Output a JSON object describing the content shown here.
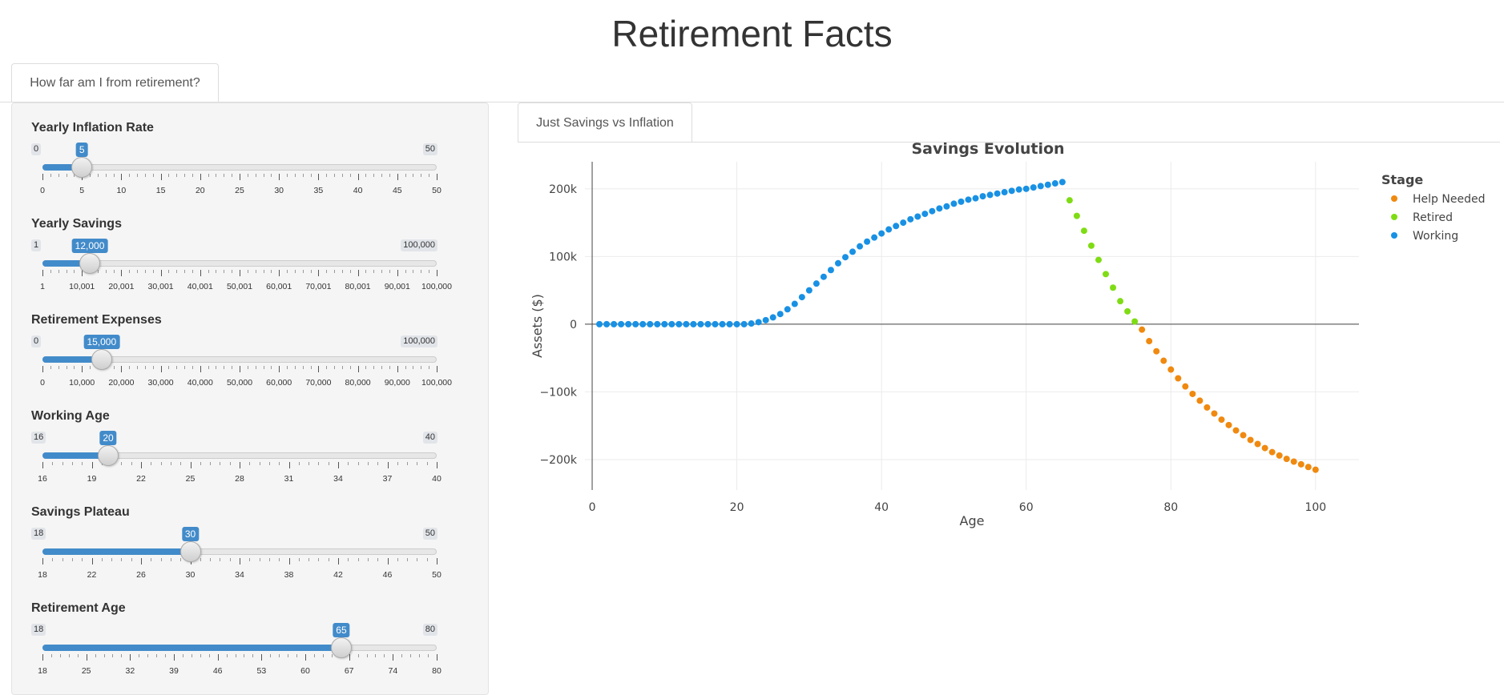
{
  "app": {
    "title": "Retirement Facts"
  },
  "tabs": {
    "main": "How far am I from retirement?",
    "inner": "Just Savings vs Inflation"
  },
  "sliders": [
    {
      "label": "Yearly Inflation Rate",
      "min": 0,
      "max": 50,
      "value": 5,
      "min_label": "0",
      "max_label": "50",
      "value_label": "5",
      "ticks": [
        "0",
        "5",
        "10",
        "15",
        "20",
        "25",
        "30",
        "35",
        "40",
        "45",
        "50"
      ]
    },
    {
      "label": "Yearly Savings",
      "min": 1,
      "max": 100000,
      "value": 12000,
      "min_label": "1",
      "max_label": "100,000",
      "value_label": "12,000",
      "ticks": [
        "1",
        "10,001",
        "20,001",
        "30,001",
        "40,001",
        "50,001",
        "60,001",
        "70,001",
        "80,001",
        "90,001",
        "100,000"
      ]
    },
    {
      "label": "Retirement Expenses",
      "min": 0,
      "max": 100000,
      "value": 15000,
      "min_label": "0",
      "max_label": "100,000",
      "value_label": "15,000",
      "ticks": [
        "0",
        "10,000",
        "20,000",
        "30,000",
        "40,000",
        "50,000",
        "60,000",
        "70,000",
        "80,000",
        "90,000",
        "100,000"
      ]
    },
    {
      "label": "Working Age",
      "min": 16,
      "max": 40,
      "value": 20,
      "min_label": "16",
      "max_label": "40",
      "value_label": "20",
      "ticks": [
        "16",
        "19",
        "22",
        "25",
        "28",
        "31",
        "34",
        "37",
        "40"
      ]
    },
    {
      "label": "Savings Plateau",
      "min": 18,
      "max": 50,
      "value": 30,
      "min_label": "18",
      "max_label": "50",
      "value_label": "30",
      "ticks": [
        "18",
        "22",
        "26",
        "30",
        "34",
        "38",
        "42",
        "46",
        "50"
      ]
    },
    {
      "label": "Retirement Age",
      "min": 18,
      "max": 80,
      "value": 65,
      "min_label": "18",
      "max_label": "80",
      "value_label": "65",
      "ticks": [
        "18",
        "25",
        "32",
        "39",
        "46",
        "53",
        "60",
        "67",
        "74",
        "80"
      ]
    }
  ],
  "chart_data": {
    "type": "scatter",
    "title": "Savings Evolution",
    "xlabel": "Age",
    "ylabel": "Assets ($)",
    "xlim": [
      -1,
      106
    ],
    "ylim": [
      -245000,
      240000
    ],
    "xticks": [
      0,
      20,
      40,
      60,
      80,
      100
    ],
    "yticks": [
      {
        "value": 200000,
        "label": "200k"
      },
      {
        "value": 100000,
        "label": "100k"
      },
      {
        "value": 0,
        "label": "0"
      },
      {
        "value": -100000,
        "label": "−100k"
      },
      {
        "value": -200000,
        "label": "−200k"
      }
    ],
    "legend": {
      "title": "Stage",
      "position": "right"
    },
    "series": [
      {
        "name": "Help Needed",
        "color": "#f0890f",
        "x": [
          76,
          77,
          78,
          79,
          80,
          81,
          82,
          83,
          84,
          85,
          86,
          87,
          88,
          89,
          90,
          91,
          92,
          93,
          94,
          95,
          96,
          97,
          98,
          99,
          100
        ],
        "y": [
          -8000,
          -25000,
          -40000,
          -54000,
          -67000,
          -80000,
          -92000,
          -103000,
          -113000,
          -123000,
          -132000,
          -141000,
          -149000,
          -157000,
          -164000,
          -171000,
          -177000,
          -183000,
          -189000,
          -194000,
          -199000,
          -203000,
          -207000,
          -211000,
          -215000
        ]
      },
      {
        "name": "Retired",
        "color": "#7fdc14",
        "x": [
          66,
          67,
          68,
          69,
          70,
          71,
          72,
          73,
          74,
          75
        ],
        "y": [
          183000,
          160000,
          138000,
          116000,
          95000,
          74000,
          54000,
          34000,
          19000,
          4000
        ]
      },
      {
        "name": "Working",
        "color": "#1891e4",
        "x": [
          1,
          2,
          3,
          4,
          5,
          6,
          7,
          8,
          9,
          10,
          11,
          12,
          13,
          14,
          15,
          16,
          17,
          18,
          19,
          20,
          21,
          22,
          23,
          24,
          25,
          26,
          27,
          28,
          29,
          30,
          31,
          32,
          33,
          34,
          35,
          36,
          37,
          38,
          39,
          40,
          41,
          42,
          43,
          44,
          45,
          46,
          47,
          48,
          49,
          50,
          51,
          52,
          53,
          54,
          55,
          56,
          57,
          58,
          59,
          60,
          61,
          62,
          63,
          64,
          65
        ],
        "y": [
          0,
          0,
          0,
          0,
          0,
          0,
          0,
          0,
          0,
          0,
          0,
          0,
          0,
          0,
          0,
          0,
          0,
          0,
          0,
          0,
          0,
          1000,
          3000,
          6000,
          10000,
          15000,
          22000,
          30000,
          40000,
          50000,
          60000,
          70000,
          80000,
          90000,
          99000,
          107000,
          115000,
          122000,
          128000,
          134000,
          140000,
          145000,
          150000,
          155000,
          159000,
          163000,
          167000,
          171000,
          174000,
          178000,
          181000,
          184000,
          186000,
          189000,
          191000,
          193000,
          195000,
          197000,
          199000,
          200000,
          202000,
          204000,
          206000,
          208000,
          210000
        ]
      }
    ]
  }
}
